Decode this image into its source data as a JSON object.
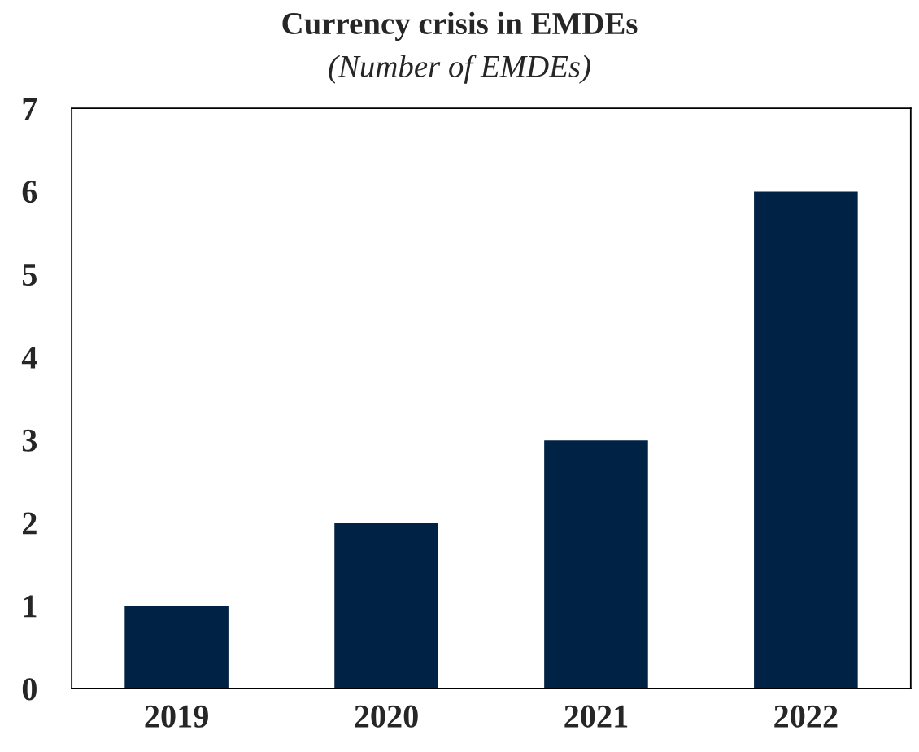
{
  "chart_data": {
    "type": "bar",
    "title": "Currency crisis in EMDEs",
    "subtitle": "(Number of EMDEs)",
    "categories": [
      "2019",
      "2020",
      "2021",
      "2022"
    ],
    "series": [
      {
        "color": "#002244",
        "values": [
          1,
          2,
          3,
          6
        ]
      }
    ],
    "ylim": [
      0,
      7
    ],
    "yticks": [
      0,
      1,
      2,
      3,
      4,
      5,
      6,
      7
    ],
    "grid": false,
    "legend": false
  }
}
